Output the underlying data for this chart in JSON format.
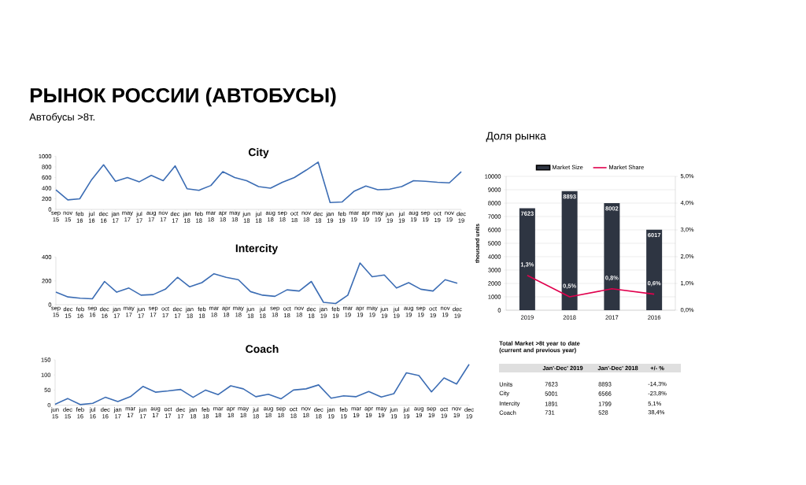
{
  "chart_data": [
    {
      "type": "other",
      "title": "РЫНОК РОССИИ (АВТОБУСЫ)",
      "subtitle": "Автобусы >8т."
    },
    {
      "type": "line",
      "title": "City",
      "categories": [
        "sep 15",
        "nov 15",
        "feb 16",
        "jul 16",
        "dec 16",
        "jan 17",
        "may 17",
        "jul 17",
        "aug 17",
        "nov 17",
        "dec 17",
        "jan 18",
        "feb 18",
        "mar 18",
        "apr 18",
        "may 18",
        "jun 18",
        "jul 18",
        "aug 18",
        "sep 18",
        "oct 18",
        "nov 18",
        "dec 18",
        "jan 19",
        "feb 19",
        "mar 19",
        "apr 19",
        "may 19",
        "jun 19",
        "jul 19",
        "aug 19",
        "sep 19",
        "oct 19",
        "nov 19",
        "dec 19"
      ],
      "values": [
        370,
        180,
        200,
        560,
        840,
        530,
        600,
        520,
        640,
        540,
        820,
        390,
        360,
        450,
        710,
        600,
        540,
        430,
        400,
        510,
        600,
        740,
        890,
        130,
        140,
        340,
        440,
        370,
        380,
        430,
        540,
        530,
        510,
        500,
        710
      ],
      "color": "#3c6db4",
      "ylim": [
        0,
        1000
      ],
      "yticks": [
        0,
        200,
        400,
        600,
        800,
        1000
      ]
    },
    {
      "type": "line",
      "title": "Intercity",
      "categories": [
        "sep 15",
        "dec 15",
        "feb 16",
        "sep 16",
        "dec 16",
        "jan 17",
        "may 17",
        "jun 17",
        "sep 17",
        "oct 17",
        "dec 17",
        "jan 18",
        "feb 18",
        "mar 18",
        "apr 18",
        "may 18",
        "jun 18",
        "jul 18",
        "sep 18",
        "oct 18",
        "nov 18",
        "dec 18",
        "jan 19",
        "feb 19",
        "mar 19",
        "apr 19",
        "may 19",
        "jun 19",
        "jul 19",
        "aug 19",
        "sep 19",
        "oct 19",
        "nov 19",
        "dec 19"
      ],
      "values": [
        105,
        65,
        55,
        50,
        195,
        105,
        140,
        80,
        85,
        130,
        230,
        150,
        185,
        260,
        230,
        210,
        110,
        80,
        70,
        125,
        115,
        195,
        20,
        10,
        80,
        350,
        235,
        250,
        140,
        185,
        130,
        115,
        210,
        180
      ],
      "color": "#3c6db4",
      "ylim": [
        0,
        400
      ],
      "yticks": [
        0,
        200,
        400
      ]
    },
    {
      "type": "line",
      "title": "Coach",
      "categories": [
        "jun 15",
        "dec 15",
        "feb 16",
        "jul 16",
        "dec 16",
        "jan 17",
        "mar 17",
        "jun 17",
        "aug 17",
        "oct 17",
        "dec 17",
        "jan 18",
        "feb 18",
        "mar 18",
        "apr 18",
        "may 18",
        "jul 18",
        "aug 18",
        "sep 18",
        "oct 18",
        "nov 18",
        "dec 18",
        "jan 19",
        "feb 19",
        "mar 19",
        "apr 19",
        "may 19",
        "jun 19",
        "jul 19",
        "aug 19",
        "sep 19",
        "oct 19",
        "nov 19",
        "dec 19"
      ],
      "values": [
        3,
        22,
        2,
        6,
        26,
        12,
        28,
        62,
        43,
        47,
        52,
        26,
        50,
        35,
        64,
        54,
        28,
        36,
        21,
        50,
        54,
        67,
        23,
        31,
        28,
        45,
        27,
        38,
        107,
        98,
        44,
        90,
        70,
        135
      ],
      "color": "#3c6db4",
      "ylim": [
        0,
        150
      ],
      "yticks": [
        0,
        50,
        100,
        150
      ]
    },
    {
      "type": "bar",
      "title": "Доля рынка",
      "ylabel": "thousand units",
      "categories": [
        "2019",
        "2018",
        "2017",
        "2016"
      ],
      "series": [
        {
          "name": "Market Size",
          "type": "bar",
          "color": "#2e3542",
          "values": [
            7623,
            8893,
            8002,
            6017
          ],
          "value_labels": [
            "7623",
            "8893",
            "8002",
            "6017"
          ]
        },
        {
          "name": "Market Share",
          "type": "line",
          "axis": "y2",
          "color": "#e0004d",
          "values": [
            1.3,
            0.5,
            0.8,
            0.6
          ],
          "value_labels": [
            "1,3%",
            "0,5%",
            "0,8%",
            "0,6%"
          ]
        }
      ],
      "ylim": [
        0,
        10000
      ],
      "yticks": [
        0,
        1000,
        2000,
        3000,
        4000,
        5000,
        6000,
        7000,
        8000,
        9000,
        10000
      ],
      "y2lim": [
        0,
        5
      ],
      "y2ticks": [
        {
          "value": 0,
          "label": "0,0%"
        },
        {
          "value": 1,
          "label": "1,0%"
        },
        {
          "value": 2,
          "label": "2,0%"
        },
        {
          "value": 3,
          "label": "3,0%"
        },
        {
          "value": 4,
          "label": "4,0%"
        },
        {
          "value": 5,
          "label": "5,0%"
        }
      ],
      "grid": "y",
      "legend": "top"
    },
    {
      "type": "other",
      "title": "Total Market >8t year to date (current and previous year)",
      "categories": [
        "Units",
        "City",
        "Intercity",
        "Coach"
      ],
      "series": [
        {
          "name": "Jan'-Dec' 2019",
          "values": [
            7623,
            5001,
            1891,
            731
          ]
        },
        {
          "name": "Jan'-Dec' 2018",
          "values": [
            8893,
            6566,
            1799,
            528
          ]
        },
        {
          "name": "+/- %",
          "values": [
            -14.3,
            -23.8,
            5.1,
            38.4
          ],
          "value_labels": [
            "-14,3%",
            "-23,8%",
            "5,1%",
            "38,4%"
          ]
        }
      ],
      "data_labels": true
    }
  ]
}
